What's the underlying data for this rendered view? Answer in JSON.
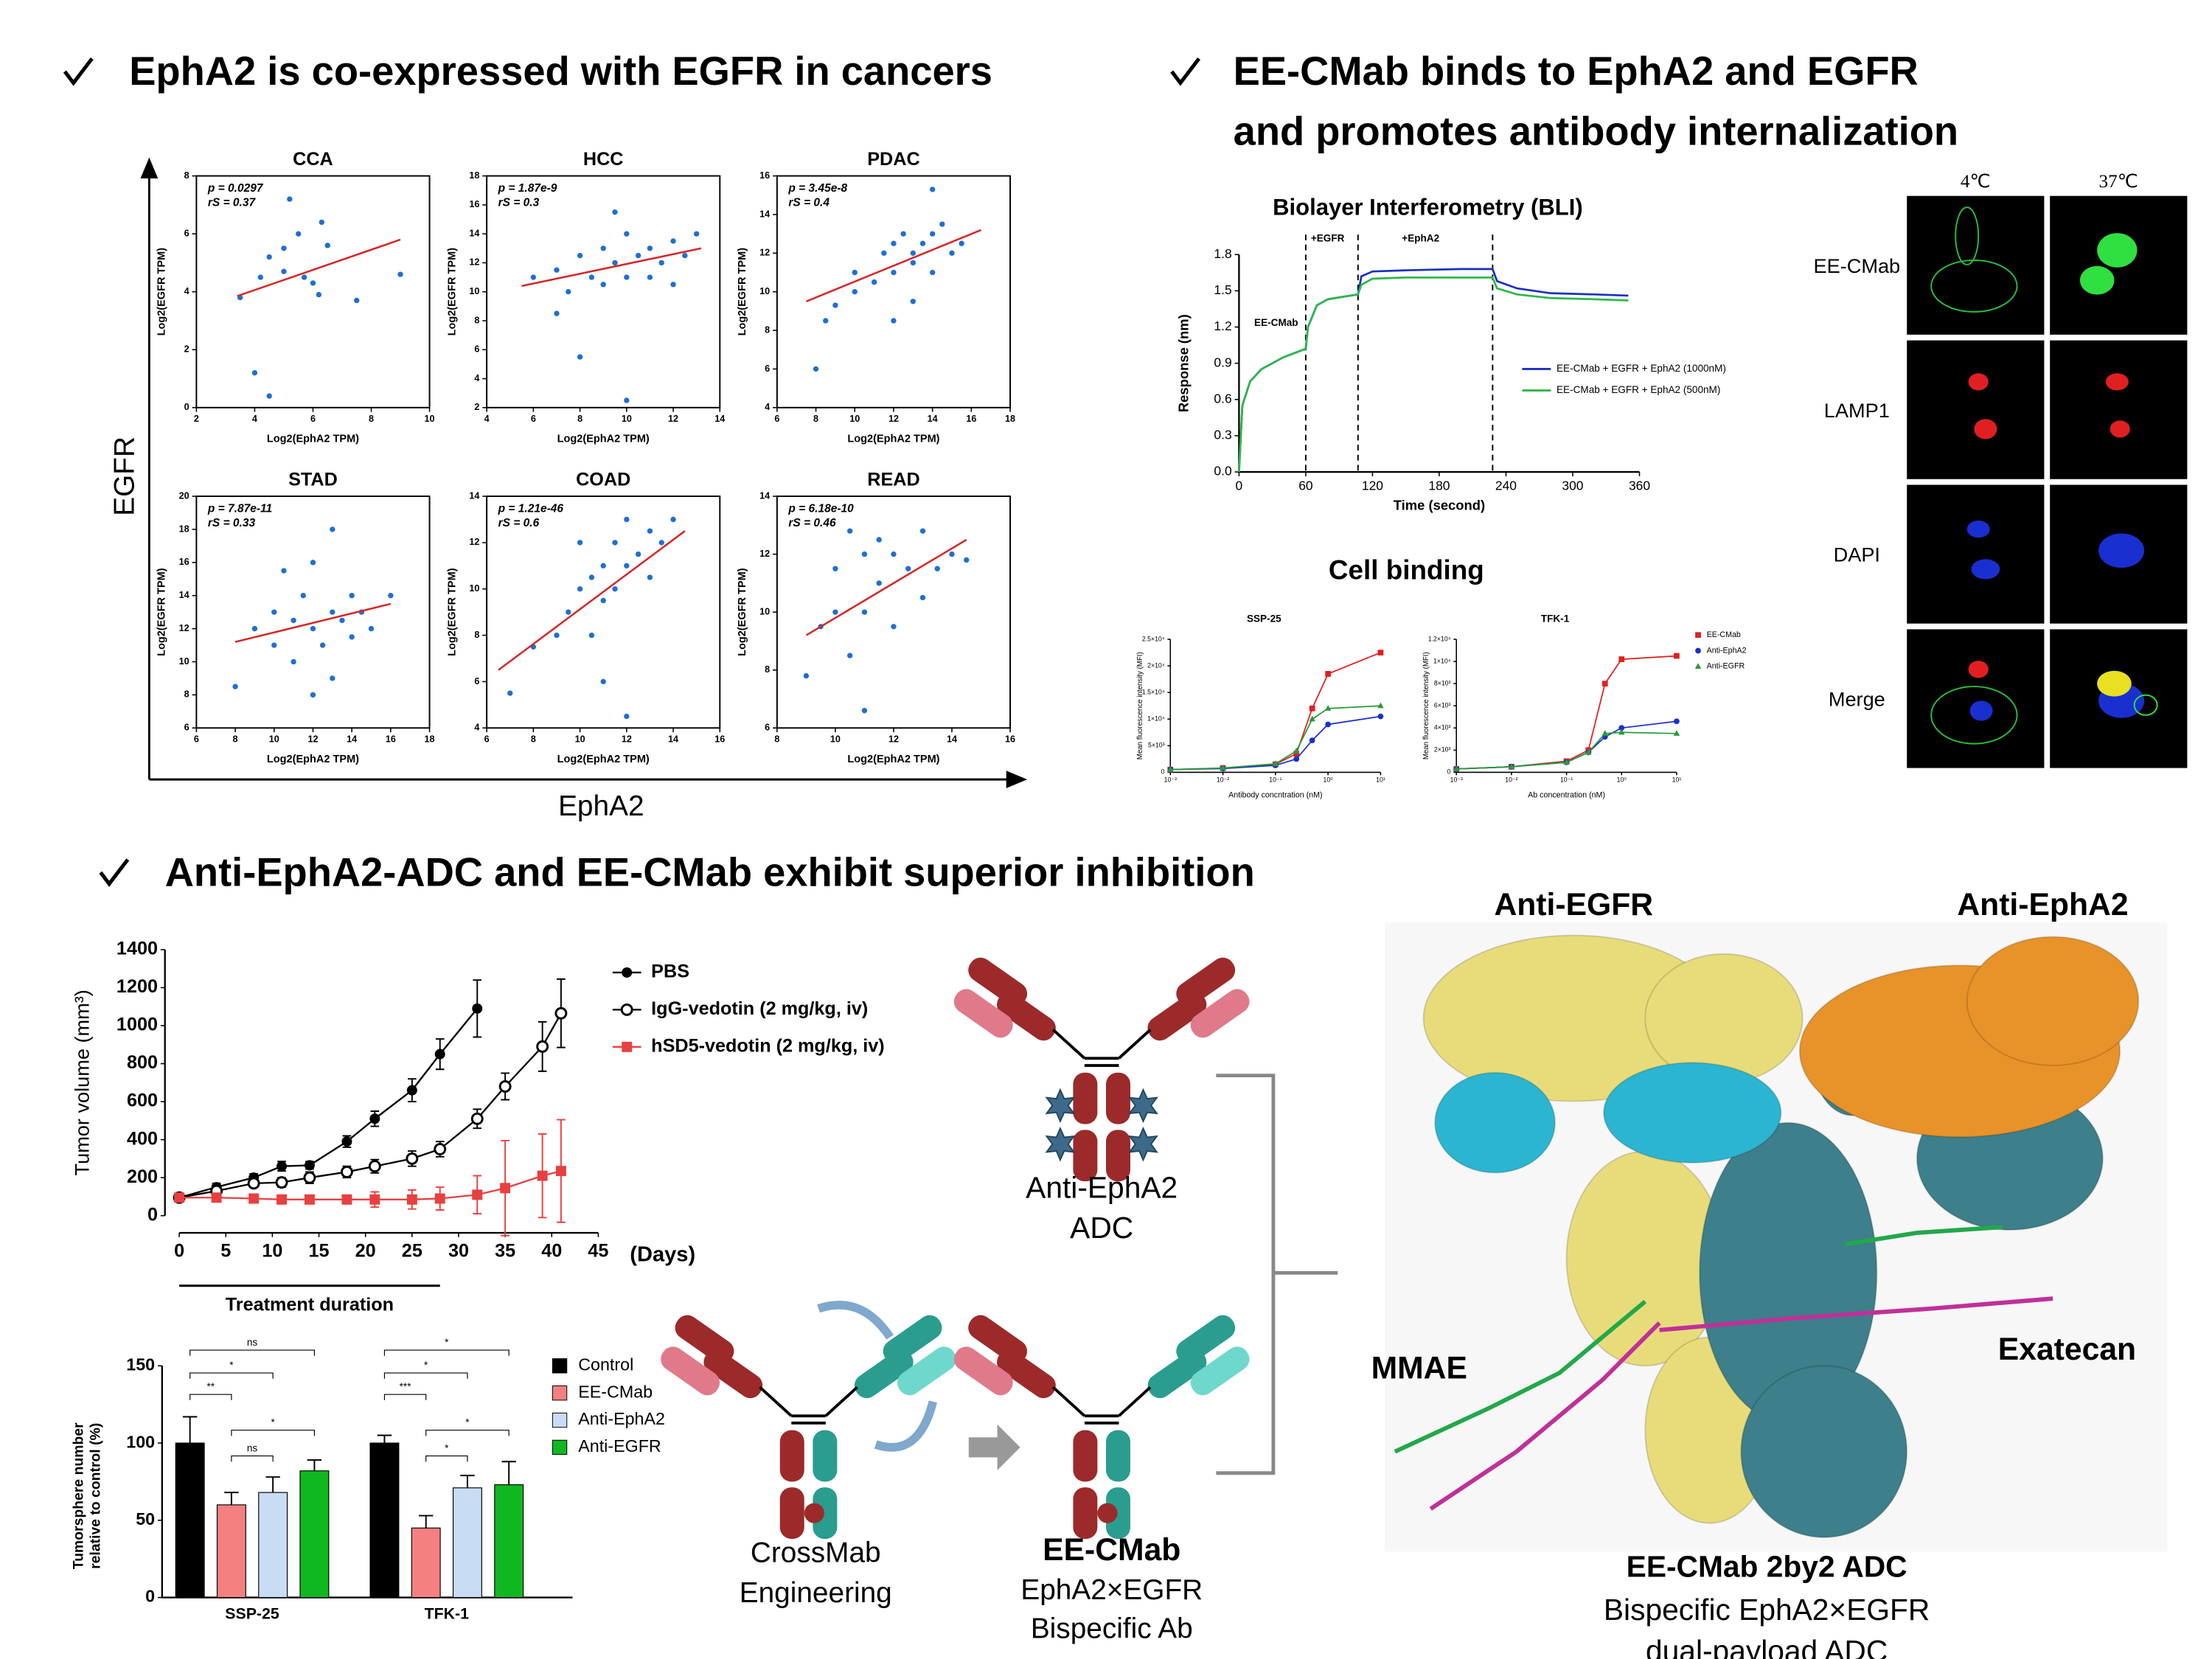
{
  "headings": {
    "left": "EphA2 is co-expressed with EGFR  in cancers",
    "right": [
      "EE-CMab binds to EphA2 and EGFR",
      "and promotes antibody internalization"
    ],
    "bottom": "Anti-EphA2-ADC and EE-CMab exhibit superior inhibition"
  },
  "scatter_axes": {
    "y": "EGFR",
    "x": "EphA2"
  },
  "cell_binding_title": "Cell binding",
  "microscopy": {
    "columns": [
      "4℃",
      "37℃"
    ],
    "rows": [
      "EE-CMab",
      "LAMP1",
      "DAPI",
      "Merge"
    ]
  },
  "diagram": {
    "adc": [
      "Anti-EphA2",
      "ADC"
    ],
    "crossmab": [
      "CrossMab",
      "Engineering"
    ],
    "bispecific": {
      "title": "EE-CMab",
      "lines": [
        "EphA2×EGFR",
        "Bispecific Ab"
      ]
    }
  },
  "structure": {
    "labels": {
      "anti_egfr": "Anti-EGFR",
      "anti_epha2": "Anti-EphA2",
      "mmae": "MMAE",
      "exatecan": "Exatecan"
    },
    "title": "EE-CMab 2by2 ADC",
    "lines": [
      "Bispecific EphA2×EGFR",
      "dual-payload ADC"
    ]
  },
  "chart_data": [
    {
      "type": "scatter",
      "title": "CCA",
      "stats": [
        "p = 0.0297",
        "rS = 0.37"
      ],
      "xlabel": "Log2(EphA2 TPM)",
      "ylabel": "Log2(EGFR TPM)",
      "color": "#1f6fd1",
      "fit_color": "#d62728",
      "xlim": [
        2,
        10
      ],
      "xticks": [
        2,
        4,
        6,
        8,
        10
      ],
      "ylim": [
        0,
        8
      ],
      "yticks": [
        0,
        2,
        4,
        6,
        8
      ],
      "x": [
        3.5,
        4.2,
        4.5,
        5,
        5.2,
        5.5,
        5.7,
        6,
        6.3,
        6.5,
        5,
        4,
        4.5,
        7.5,
        9,
        6.2
      ],
      "y": [
        3.8,
        4.5,
        5.2,
        5.5,
        7.2,
        6,
        4.5,
        4.3,
        6.4,
        5.6,
        4.7,
        1.2,
        0.4,
        3.7,
        4.6,
        3.9
      ],
      "fit_x": [
        3.4,
        9
      ],
      "fit_y": [
        3.85,
        5.8
      ]
    },
    {
      "type": "scatter",
      "title": "HCC",
      "stats": [
        "p = 1.87e-9",
        "rS = 0.3"
      ],
      "xlabel": "Log2(EphA2 TPM)",
      "ylabel": "Log2(EGFR TPM)",
      "color": "#1f6fd1",
      "fit_color": "#d62728",
      "xlim": [
        4,
        14
      ],
      "xticks": [
        4,
        6,
        8,
        10,
        12,
        14
      ],
      "ylim": [
        2,
        18
      ],
      "yticks": [
        2,
        4,
        6,
        8,
        10,
        12,
        14,
        16,
        18
      ],
      "x": [
        6,
        7,
        7.5,
        8,
        8.5,
        9,
        9,
        9.5,
        10,
        10,
        10.5,
        11,
        11,
        11.5,
        12,
        12,
        12.5,
        13,
        8,
        10,
        9.5,
        7
      ],
      "y": [
        11,
        11.5,
        10,
        12.5,
        11,
        13,
        10.5,
        12,
        14,
        11,
        12.5,
        13,
        11,
        12,
        13.5,
        10.5,
        12.5,
        14,
        5.5,
        2.5,
        15.5,
        8.5
      ],
      "fit_x": [
        5.5,
        13.2
      ],
      "fit_y": [
        10.4,
        13
      ]
    },
    {
      "type": "scatter",
      "title": "PDAC",
      "stats": [
        "p = 3.45e-8",
        "rS = 0.4"
      ],
      "xlabel": "Log2(EphA2 TPM)",
      "ylabel": "Log2(EGFR TPM)",
      "color": "#1f6fd1",
      "fit_color": "#d62728",
      "xlim": [
        6,
        18
      ],
      "xticks": [
        6,
        8,
        10,
        12,
        14,
        16,
        18
      ],
      "ylim": [
        4,
        16
      ],
      "yticks": [
        4,
        6,
        8,
        10,
        12,
        14,
        16
      ],
      "x": [
        8,
        8.5,
        9,
        10,
        10,
        11,
        11.5,
        12,
        12,
        12.5,
        13,
        13,
        13.5,
        14,
        14,
        14.5,
        15,
        14,
        15.5,
        13,
        12
      ],
      "y": [
        6,
        8.5,
        9.3,
        10,
        11,
        10.5,
        12,
        11,
        12.5,
        13,
        12,
        11.5,
        12.5,
        13,
        11,
        13.5,
        12,
        15.3,
        12.5,
        9.5,
        8.5
      ],
      "fit_x": [
        7.5,
        16.5
      ],
      "fit_y": [
        9.5,
        13.2
      ]
    },
    {
      "type": "scatter",
      "title": "STAD",
      "stats": [
        "p = 7.87e-11",
        "rS = 0.33"
      ],
      "xlabel": "Log2(EphA2 TPM)",
      "ylabel": "Log2(EGFR TPM)",
      "color": "#1f6fd1",
      "fit_color": "#d62728",
      "xlim": [
        6,
        18
      ],
      "xticks": [
        6,
        8,
        10,
        12,
        14,
        16,
        18
      ],
      "ylim": [
        6,
        20
      ],
      "yticks": [
        6,
        8,
        10,
        12,
        14,
        16,
        18,
        20
      ],
      "x": [
        8,
        9,
        10,
        10,
        11,
        11,
        11.5,
        12,
        12,
        12.5,
        13,
        13,
        13.5,
        14,
        14,
        14.5,
        15,
        13,
        12,
        16,
        10.5
      ],
      "y": [
        8.5,
        12,
        11,
        13,
        12.5,
        10,
        14,
        12,
        16,
        11,
        13,
        9,
        12.5,
        14,
        11.5,
        13,
        12,
        18,
        8,
        14,
        15.5
      ],
      "fit_x": [
        8,
        16
      ],
      "fit_y": [
        11.2,
        13.5
      ]
    },
    {
      "type": "scatter",
      "title": "COAD",
      "stats": [
        "p = 1.21e-46",
        "rS = 0.6"
      ],
      "xlabel": "Log2(EphA2 TPM)",
      "ylabel": "Log2(EGFR TPM)",
      "color": "#1f6fd1",
      "fit_color": "#d62728",
      "xlim": [
        6,
        16
      ],
      "xticks": [
        6,
        8,
        10,
        12,
        14,
        16
      ],
      "ylim": [
        4,
        14
      ],
      "yticks": [
        4,
        6,
        8,
        10,
        12,
        14
      ],
      "x": [
        7,
        8,
        9,
        9.5,
        10,
        10.5,
        10.5,
        11,
        11,
        11.5,
        11.5,
        12,
        12,
        12.5,
        13,
        13,
        13.5,
        14,
        11,
        12,
        10
      ],
      "y": [
        5.5,
        7.5,
        8,
        9,
        10,
        8,
        10.5,
        9.5,
        11,
        12,
        10,
        11,
        13,
        11.5,
        12.5,
        10.5,
        12,
        13,
        6,
        4.5,
        12
      ],
      "fit_x": [
        6.5,
        14.5
      ],
      "fit_y": [
        6.5,
        12.5
      ]
    },
    {
      "type": "scatter",
      "title": "READ",
      "stats": [
        "p = 6.18e-10",
        "rS = 0.46"
      ],
      "xlabel": "Log2(EphA2 TPM)",
      "ylabel": "Log2(EGFR TPM)",
      "color": "#1f6fd1",
      "fit_color": "#d62728",
      "xlim": [
        8,
        16
      ],
      "xticks": [
        8,
        10,
        12,
        14,
        16
      ],
      "ylim": [
        6,
        14
      ],
      "yticks": [
        6,
        8,
        10,
        12,
        14
      ],
      "x": [
        9,
        9.5,
        10,
        10,
        10.5,
        11,
        11,
        11.5,
        11.5,
        12,
        12,
        12.5,
        13,
        13,
        13.5,
        14,
        11,
        14.5,
        10.5
      ],
      "y": [
        7.8,
        9.5,
        10,
        11.5,
        8.5,
        12,
        10,
        11,
        12.5,
        9.5,
        12,
        11.5,
        12.8,
        10.5,
        11.5,
        12,
        6.6,
        11.8,
        12.8
      ],
      "fit_x": [
        9,
        14.5
      ],
      "fit_y": [
        9.2,
        12.5
      ]
    },
    {
      "type": "line",
      "title": "Biolayer Interferometry (BLI)",
      "xlabel": "Time (second)",
      "ylabel": "Response (nm)",
      "xlim": [
        0,
        360
      ],
      "xticks": [
        0,
        60,
        120,
        180,
        240,
        300,
        360
      ],
      "ylim": [
        0,
        1.8
      ],
      "yticks": [
        {
          "value": 0,
          "label": "0.0"
        },
        0.3,
        0.6,
        0.9,
        1.2,
        1.5,
        1.8
      ],
      "annotations": [
        "EE-CMab",
        "+EGFR",
        "+EphA2"
      ],
      "event_lines": [
        60,
        107,
        228
      ],
      "x": [
        0,
        3,
        10,
        20,
        40,
        60,
        62,
        70,
        80,
        100,
        107,
        110,
        120,
        150,
        200,
        228,
        232,
        250,
        280,
        320,
        350
      ],
      "series": [
        {
          "name": "EE-CMab + EGFR + EphA2 (1000nM)",
          "color": "#1a2fc4",
          "values": [
            0,
            0.55,
            0.75,
            0.85,
            0.95,
            1.02,
            1.2,
            1.38,
            1.43,
            1.46,
            1.47,
            1.62,
            1.66,
            1.67,
            1.68,
            1.68,
            1.58,
            1.52,
            1.48,
            1.47,
            1.46
          ]
        },
        {
          "name": "EE-CMab + EGFR + EphA2 (500nM)",
          "color": "#2db84a",
          "values": [
            0,
            0.55,
            0.75,
            0.85,
            0.95,
            1.02,
            1.2,
            1.38,
            1.43,
            1.46,
            1.47,
            1.55,
            1.6,
            1.61,
            1.61,
            1.61,
            1.52,
            1.47,
            1.44,
            1.43,
            1.42
          ]
        }
      ]
    },
    {
      "type": "dose",
      "title": "SSP-25",
      "xlabel": "Antibody concntration (nM)",
      "ylabel": "Mean fluorescence intensity (MFI)",
      "log_x": true,
      "xlim": [
        0.001,
        10
      ],
      "xticks": [
        {
          "value": 0.001,
          "label": "10⁻³"
        },
        {
          "value": 0.01,
          "label": "10⁻²"
        },
        {
          "value": 0.1,
          "label": "10⁻¹"
        },
        {
          "value": 1,
          "label": "10⁰"
        },
        {
          "value": 10,
          "label": "10¹"
        }
      ],
      "ylim": [
        0,
        25000
      ],
      "yticks": [
        0,
        {
          "value": 5000,
          "label": "5×10³"
        },
        {
          "value": 10000,
          "label": "1×10⁴"
        },
        {
          "value": 15000,
          "label": "1.5×10⁴"
        },
        {
          "value": 20000,
          "label": "2×10⁴"
        },
        {
          "value": 25000,
          "label": "2.5×10⁴"
        }
      ],
      "x": [
        0.001,
        0.01,
        0.1,
        0.25,
        0.5,
        1,
        10
      ],
      "legend": false,
      "series": [
        {
          "name": "EE-CMab",
          "color": "#e02020",
          "marker": "square",
          "values": [
            500,
            800,
            1500,
            3500,
            12000,
            18500,
            22500
          ]
        },
        {
          "name": "Anti-EphA2",
          "color": "#1a2fd0",
          "marker": "circle",
          "values": [
            500,
            700,
            1300,
            2500,
            6000,
            9000,
            10500
          ]
        },
        {
          "name": "Anti-EGFR",
          "color": "#2a9a3a",
          "marker": "triangle",
          "values": [
            500,
            800,
            1600,
            4000,
            10000,
            12000,
            12500
          ]
        }
      ]
    },
    {
      "type": "dose",
      "title": "TFK-1",
      "xlabel": "Ab concentration (nM)",
      "ylabel": "Mean fluorescence intensity (MFI)",
      "log_x": true,
      "xlim": [
        0.001,
        10
      ],
      "xticks": [
        {
          "value": 0.001,
          "label": "10⁻³"
        },
        {
          "value": 0.01,
          "label": "10⁻²"
        },
        {
          "value": 0.1,
          "label": "10⁻¹"
        },
        {
          "value": 1,
          "label": "10⁰"
        },
        {
          "value": 10,
          "label": "10¹"
        }
      ],
      "ylim": [
        0,
        12000
      ],
      "yticks": [
        0,
        {
          "value": 2000,
          "label": "2×10³"
        },
        {
          "value": 4000,
          "label": "4×10³"
        },
        {
          "value": 6000,
          "label": "6×10³"
        },
        {
          "value": 8000,
          "label": "8×10³"
        },
        {
          "value": 10000,
          "label": "1×10⁴"
        },
        {
          "value": 12000,
          "label": "1.2×10⁴"
        }
      ],
      "x": [
        0.001,
        0.01,
        0.1,
        0.25,
        0.5,
        1,
        10
      ],
      "legend": true,
      "series": [
        {
          "name": "EE-CMab",
          "color": "#e02020",
          "marker": "square",
          "values": [
            300,
            500,
            1000,
            2000,
            8000,
            10200,
            10500
          ]
        },
        {
          "name": "Anti-EphA2",
          "color": "#1a2fd0",
          "marker": "circle",
          "values": [
            300,
            500,
            900,
            1800,
            3200,
            4000,
            4600
          ]
        },
        {
          "name": "Anti-EGFR",
          "color": "#2a9a3a",
          "marker": "triangle",
          "values": [
            300,
            500,
            900,
            1800,
            3500,
            3600,
            3500
          ]
        }
      ]
    },
    {
      "type": "tumor",
      "xlabel": "(Days)",
      "ylabel": "Tumor volume (mm³)",
      "treatment_label": "Treatment duration",
      "treatment_days": [
        0,
        28
      ],
      "xlim": [
        0,
        45
      ],
      "xticks": [
        0,
        5,
        10,
        15,
        20,
        25,
        30,
        35,
        40,
        45
      ],
      "ylim": [
        0,
        1400
      ],
      "yticks": [
        0,
        200,
        400,
        600,
        800,
        1000,
        1200,
        1400
      ],
      "series": [
        {
          "name": "PBS",
          "color": "#000000",
          "marker": "circle-filled",
          "x": [
            0,
            4,
            8,
            11,
            14,
            18,
            21,
            25,
            28,
            32
          ],
          "values": [
            95,
            150,
            200,
            260,
            265,
            390,
            510,
            660,
            850,
            1090
          ],
          "errors": [
            15,
            20,
            20,
            25,
            20,
            30,
            40,
            60,
            80,
            150
          ]
        },
        {
          "name": "IgG-vedotin (2 mg/kg, iv)",
          "color": "#000000",
          "marker": "circle-open",
          "x": [
            0,
            4,
            8,
            11,
            14,
            18,
            21,
            25,
            28,
            32,
            35,
            39,
            41
          ],
          "values": [
            95,
            130,
            170,
            175,
            200,
            230,
            260,
            300,
            350,
            510,
            680,
            890,
            1065
          ],
          "errors": [
            15,
            15,
            20,
            25,
            30,
            30,
            35,
            40,
            40,
            50,
            70,
            130,
            180
          ]
        },
        {
          "name": "hSD5-vedotin (2 mg/kg, iv)",
          "color": "#e84040",
          "marker": "square",
          "x": [
            0,
            4,
            8,
            11,
            14,
            18,
            21,
            25,
            28,
            32,
            35,
            39,
            41
          ],
          "values": [
            95,
            95,
            90,
            85,
            85,
            85,
            85,
            85,
            90,
            110,
            145,
            210,
            235
          ],
          "errors": [
            10,
            10,
            10,
            15,
            15,
            20,
            40,
            50,
            60,
            100,
            250,
            220,
            270
          ]
        }
      ]
    },
    {
      "type": "bar",
      "ylabel": [
        "Tumorsphere number",
        "relative to control (%)"
      ],
      "categories": [
        "SSP-25",
        "TFK-1"
      ],
      "ylim": [
        0,
        150
      ],
      "yticks": [
        0,
        50,
        100,
        150
      ],
      "significance": [
        [
          "ns",
          "*",
          "**",
          "*",
          "ns"
        ],
        [
          "*",
          "*",
          "***",
          "*",
          "*"
        ]
      ],
      "series": [
        {
          "name": "Control",
          "color": "#000000",
          "values": [
            100,
            100
          ],
          "errors": [
            17,
            5
          ]
        },
        {
          "name": "EE-CMab",
          "color": "#f48080",
          "values": [
            60,
            45
          ],
          "errors": [
            8,
            8
          ]
        },
        {
          "name": "Anti-EphA2",
          "color": "#c8dcf4",
          "values": [
            68,
            71
          ],
          "errors": [
            10,
            8
          ]
        },
        {
          "name": "Anti-EGFR",
          "color": "#10b820",
          "values": [
            82,
            73
          ],
          "errors": [
            7,
            15
          ]
        }
      ]
    }
  ]
}
